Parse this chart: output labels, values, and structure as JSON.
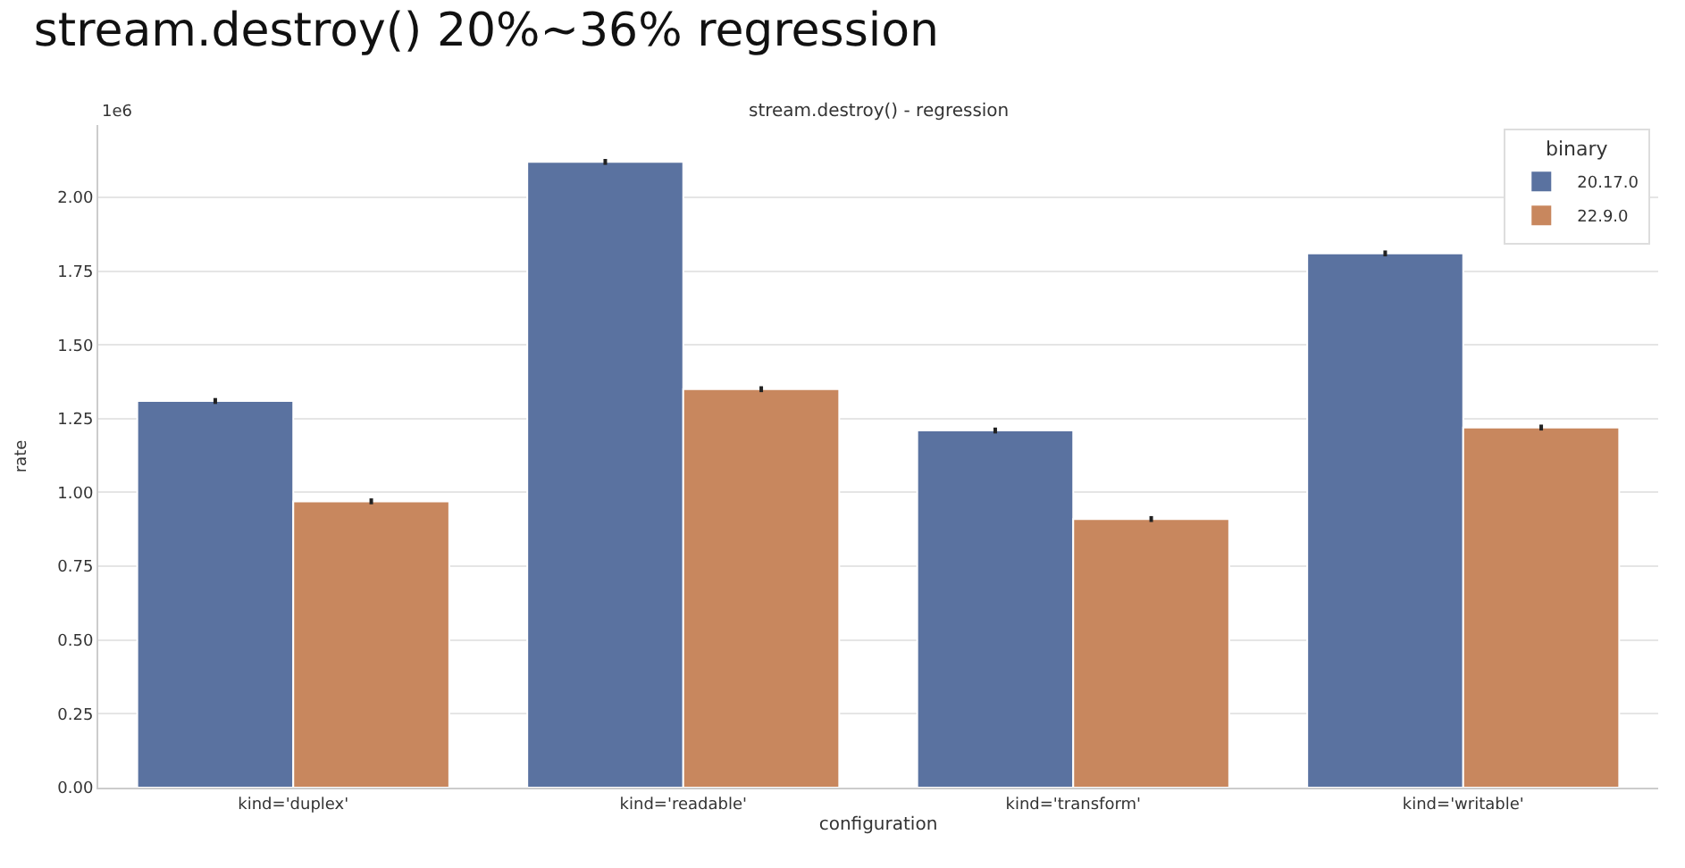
{
  "chart_data": {
    "type": "bar",
    "title": "stream.destroy() 20%~36% regression",
    "subtitle": "stream.destroy() - regression",
    "xlabel": "configuration",
    "ylabel": "rate",
    "legend_title": "binary",
    "annotations": [
      "1e6"
    ],
    "categories": [
      "kind='duplex'",
      "kind='readable'",
      "kind='transform'",
      "kind='writable'"
    ],
    "series": [
      {
        "name": "20.17.0",
        "color": "#5a72a0",
        "values": [
          1.31,
          2.12,
          1.21,
          1.81
        ],
        "errors": [
          0.01,
          0.01,
          0.01,
          0.01
        ]
      },
      {
        "name": "22.9.0",
        "color": "#c8875e",
        "values": [
          0.97,
          1.35,
          0.91,
          1.22
        ],
        "errors": [
          0.01,
          0.01,
          0.01,
          0.01
        ]
      }
    ],
    "ylim": [
      0,
      2.245
    ],
    "yticks": [
      {
        "value": 0,
        "label": "0.00"
      },
      {
        "value": 0.25,
        "label": "0.25"
      },
      {
        "value": 0.5,
        "label": "0.50"
      },
      {
        "value": 0.75,
        "label": "0.75"
      },
      {
        "value": 1,
        "label": "1.00"
      },
      {
        "value": 1.25,
        "label": "1.25"
      },
      {
        "value": 1.5,
        "label": "1.50"
      },
      {
        "value": 1.75,
        "label": "1.75"
      },
      {
        "value": 2,
        "label": "2.00"
      }
    ],
    "grid": "y",
    "legend": "top right"
  }
}
